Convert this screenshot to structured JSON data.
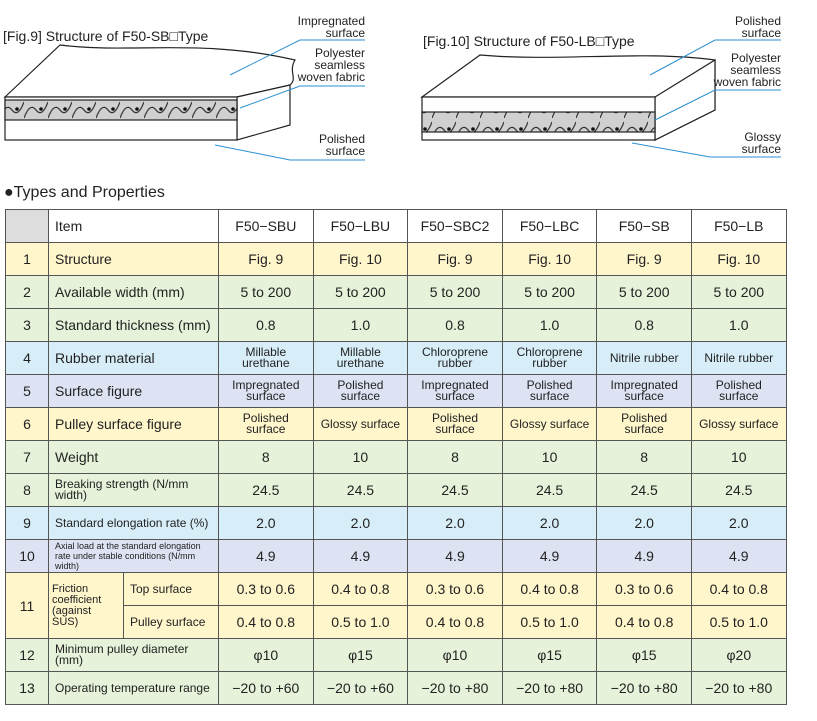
{
  "figures": [
    {
      "caption": "[Fig.9] Structure of F50-SB□Type",
      "labels": [
        "Impregnated\nsurface",
        "Polyester\nseamless\nwoven fabric",
        "Polished\nsurface"
      ]
    },
    {
      "caption": "[Fig.10] Structure of F50-LB□Type",
      "labels": [
        "Polished\nsurface",
        "Polyester\nseamless\nwoven fabric",
        "Glossy\nsurface"
      ]
    }
  ],
  "section_title": "●Types and Properties",
  "table": {
    "header": {
      "item": "Item",
      "columns": [
        "F50−SBU",
        "F50−LBU",
        "F50−SBC2",
        "F50−LBC",
        "F50−SB",
        "F50−LB"
      ]
    },
    "rows": [
      {
        "no": "1",
        "item": "Structure",
        "values": [
          "Fig. 9",
          "Fig. 10",
          "Fig. 9",
          "Fig. 10",
          "Fig. 9",
          "Fig. 10"
        ]
      },
      {
        "no": "2",
        "item": "Available width (mm)",
        "values": [
          "5 to 200",
          "5 to 200",
          "5 to 200",
          "5 to 200",
          "5 to 200",
          "5 to 200"
        ]
      },
      {
        "no": "3",
        "item": "Standard thickness (mm)",
        "values": [
          "0.8",
          "1.0",
          "0.8",
          "1.0",
          "0.8",
          "1.0"
        ]
      },
      {
        "no": "4",
        "item": "Rubber material",
        "values": [
          "Millable\nurethane",
          "Millable\nurethane",
          "Chloroprene\nrubber",
          "Chloroprene\nrubber",
          "Nitrile rubber",
          "Nitrile rubber"
        ]
      },
      {
        "no": "5",
        "item": "Surface figure",
        "values": [
          "Impregnated\nsurface",
          "Polished\nsurface",
          "Impregnated\nsurface",
          "Polished\nsurface",
          "Impregnated\nsurface",
          "Polished\nsurface"
        ]
      },
      {
        "no": "6",
        "item": "Pulley surface figure",
        "values": [
          "Polished\nsurface",
          "Glossy surface",
          "Polished\nsurface",
          "Glossy surface",
          "Polished\nsurface",
          "Glossy surface"
        ]
      },
      {
        "no": "7",
        "item": "Weight",
        "values": [
          "8",
          "10",
          "8",
          "10",
          "8",
          "10"
        ]
      },
      {
        "no": "8",
        "item": "Breaking strength (N/mm width)",
        "values": [
          "24.5",
          "24.5",
          "24.5",
          "24.5",
          "24.5",
          "24.5"
        ]
      },
      {
        "no": "9",
        "item": "Standard elongation rate (%)",
        "values": [
          "2.0",
          "2.0",
          "2.0",
          "2.0",
          "2.0",
          "2.0"
        ]
      },
      {
        "no": "10",
        "item": "Axial load at the standard elongation\nrate under stable conditions (N/mm width)",
        "values": [
          "4.9",
          "4.9",
          "4.9",
          "4.9",
          "4.9",
          "4.9"
        ]
      },
      {
        "no": "11",
        "item": "Friction\ncoefficient\n(against SUS)",
        "sub": [
          {
            "item": "Top surface",
            "values": [
              "0.3 to 0.6",
              "0.4 to 0.8",
              "0.3 to 0.6",
              "0.4 to 0.8",
              "0.3 to 0.6",
              "0.4 to 0.8"
            ]
          },
          {
            "item": "Pulley surface",
            "values": [
              "0.4 to 0.8",
              "0.5 to 1.0",
              "0.4 to 0.8",
              "0.5 to 1.0",
              "0.4 to 0.8",
              "0.5 to 1.0"
            ]
          }
        ]
      },
      {
        "no": "12",
        "item": "Minimum pulley diameter (mm)",
        "values": [
          "φ10",
          "φ15",
          "φ10",
          "φ15",
          "φ15",
          "φ20"
        ]
      },
      {
        "no": "13",
        "item": "Operating temperature range",
        "values": [
          "−20 to +60",
          "−20 to +60",
          "−20 to +80",
          "−20 to +80",
          "−20 to +80",
          "−20 to +80"
        ]
      }
    ]
  }
}
